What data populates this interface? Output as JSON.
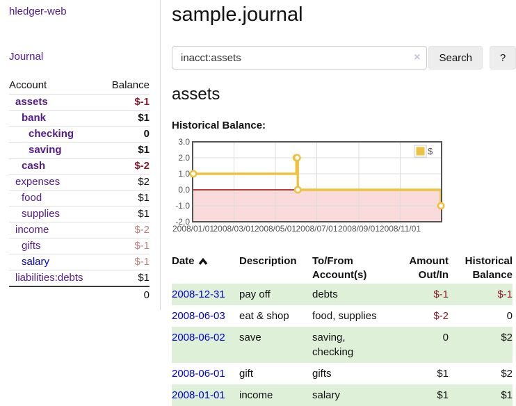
{
  "app": {
    "brand": "hledger-web",
    "nav": {
      "journal": "Journal"
    }
  },
  "sidebar": {
    "columns": {
      "account": "Account",
      "balance": "Balance"
    },
    "accounts": [
      {
        "name": "assets",
        "depth": 1,
        "emph": true,
        "balance": "$-1",
        "tone": "neg"
      },
      {
        "name": "bank",
        "depth": 2,
        "emph": true,
        "balance": "$1",
        "tone": "pos"
      },
      {
        "name": "checking",
        "depth": 3,
        "emph": true,
        "balance": "0",
        "tone": "pos"
      },
      {
        "name": "saving",
        "depth": 3,
        "emph": true,
        "balance": "$1",
        "tone": "pos"
      },
      {
        "name": "cash",
        "depth": 2,
        "emph": true,
        "balance": "$-2",
        "tone": "neg"
      },
      {
        "name": "expenses",
        "depth": 1,
        "emph": false,
        "balance": "$2",
        "tone": "pos"
      },
      {
        "name": "food",
        "depth": 2,
        "emph": false,
        "balance": "$1",
        "tone": "pos"
      },
      {
        "name": "supplies",
        "depth": 2,
        "emph": false,
        "balance": "$1",
        "tone": "pos"
      },
      {
        "name": "income",
        "depth": 1,
        "emph": false,
        "balance": "$-2",
        "tone": "neg-soft"
      },
      {
        "name": "gifts",
        "depth": 2,
        "emph": false,
        "balance": "$-1",
        "tone": "neg-soft"
      },
      {
        "name": "salary",
        "depth": 2,
        "emph": false,
        "balance": "$-1",
        "tone": "neg-soft",
        "link_state": "unvisited"
      },
      {
        "name": "liabilities:debts",
        "depth": 1,
        "emph": false,
        "balance": "$1",
        "tone": "pos"
      }
    ],
    "total": "0"
  },
  "header": {
    "title": "sample.journal"
  },
  "search": {
    "value": "inacct:assets",
    "clear_icon": "×",
    "search_button": "Search",
    "help_button": "?"
  },
  "account_page": {
    "heading": "assets",
    "chart_title": "Historical Balance:"
  },
  "chart_data": {
    "type": "line",
    "step": true,
    "title": "Historical Balance:",
    "legend": [
      {
        "label": "$",
        "color": "#edc240"
      }
    ],
    "legend_position": "top-right",
    "x_start": "2008-01-01",
    "x_end": "2008-12-31",
    "points": [
      [
        "2008-01-01",
        1
      ],
      [
        "2008-06-01",
        2
      ],
      [
        "2008-06-02",
        2
      ],
      [
        "2008-06-03",
        0
      ],
      [
        "2008-12-31",
        -1
      ]
    ],
    "ylim": [
      -2,
      3
    ],
    "ytick_labels": [
      "3.0",
      "2.0",
      "1.0",
      "0.0",
      "-1.0",
      "-2.0"
    ],
    "xtick_labels": [
      "2008/01/01",
      "2008/03/01",
      "2008/05/01",
      "2008/07/01",
      "2008/09/01",
      "2008/11/01"
    ],
    "grid": true,
    "colors": {
      "series": "#edc240",
      "marker_fill": "#ffffff",
      "negative_region": "#f9dbdb",
      "zero_line": "#a00000",
      "axis_text": "#545454",
      "gridline": "#dcdcdc",
      "plot_border": "#545454"
    }
  },
  "register": {
    "columns": {
      "date": "Date",
      "sort_icon": "chevron-up",
      "description": "Description",
      "tofrom": [
        "To/From",
        "Account(s)"
      ],
      "amount": [
        "Amount",
        "Out/In"
      ],
      "balance": [
        "Historical",
        "Balance"
      ]
    },
    "rows": [
      {
        "date": "2008-12-31",
        "description": "pay off",
        "accounts": "debts",
        "amount": "$-1",
        "amount_tone": "neg",
        "balance": "$-1",
        "balance_tone": "neg"
      },
      {
        "date": "2008-06-03",
        "description": "eat & shop",
        "accounts": "food, supplies",
        "amount": "$-2",
        "amount_tone": "neg",
        "balance": "0",
        "balance_tone": "pos"
      },
      {
        "date": "2008-06-02",
        "description": "save",
        "accounts": "saving, checking",
        "amount": "0",
        "amount_tone": "pos",
        "balance": "$2",
        "balance_tone": "pos"
      },
      {
        "date": "2008-06-01",
        "description": "gift",
        "accounts": "gifts",
        "amount": "$1",
        "amount_tone": "pos",
        "balance": "$2",
        "balance_tone": "pos"
      },
      {
        "date": "2008-01-01",
        "description": "income",
        "accounts": "salary",
        "amount": "$1",
        "amount_tone": "pos",
        "balance": "$1",
        "balance_tone": "pos"
      }
    ]
  },
  "colors": {
    "link_purple": "#551a8b",
    "link_blue": "#0000cc",
    "negative_strong": "#8b1a2c",
    "negative_soft": "#c08081",
    "row_stripe_green": "#dff0d8",
    "button_bg": "#ededed",
    "input_border": "#cccccc",
    "clear_icon": "#c9c0de"
  }
}
